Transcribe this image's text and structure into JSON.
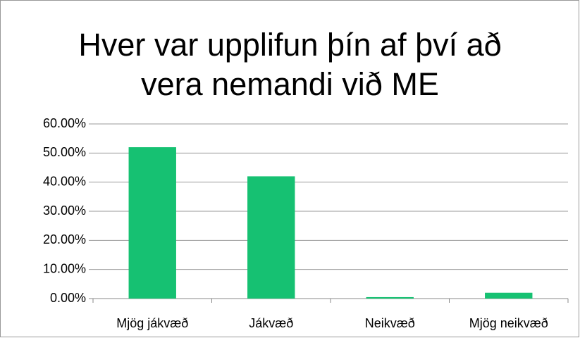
{
  "chart_data": {
    "type": "bar",
    "title": "Hver var upplifun þín af því að vera nemandi við ME",
    "categories": [
      "Mjög jákvæð",
      "Jákvæð",
      "Neikvæð",
      "Mjög neikvæð"
    ],
    "values": [
      52,
      42,
      0.5,
      2
    ],
    "color": "#16c172",
    "ylim": [
      0,
      60
    ],
    "yticks": [
      {
        "value": 0,
        "label": "0.00%"
      },
      {
        "value": 10,
        "label": "10.00%"
      },
      {
        "value": 20,
        "label": "20.00%"
      },
      {
        "value": 30,
        "label": "30.00%"
      },
      {
        "value": 40,
        "label": "40.00%"
      },
      {
        "value": 50,
        "label": "50.00%"
      },
      {
        "value": 60,
        "label": "60.00%"
      }
    ],
    "grid": true
  }
}
